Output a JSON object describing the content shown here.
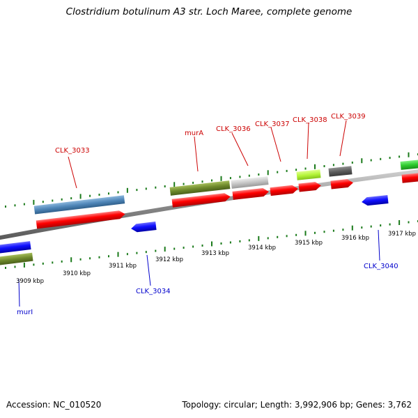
{
  "header": {
    "title": "Clostridium botulinum A3 str. Loch Maree, complete genome"
  },
  "footer": {
    "accession": "Accession: NC_010520",
    "topology": "Topology: circular; Length: 3,992,906 bp; Genes: 3,762"
  },
  "colors": {
    "forward_label": "#cc0000",
    "reverse_label": "#0000cc",
    "tick": "#1a7a1a",
    "backbone": "#8a8a8a"
  },
  "scale": {
    "labels": [
      "3909 kbp",
      "3910 kbp",
      "3911 kbp",
      "3912 kbp",
      "3913 kbp",
      "3914 kbp",
      "3915 kbp",
      "3916 kbp",
      "3917 kbp"
    ]
  },
  "forward_labels": [
    "CLK_3033",
    "murA",
    "CLK_3036",
    "CLK_3037",
    "CLK_3038",
    "CLK_3039"
  ],
  "reverse_labels": [
    "murI",
    "CLK_3034",
    "CLK_3040"
  ]
}
